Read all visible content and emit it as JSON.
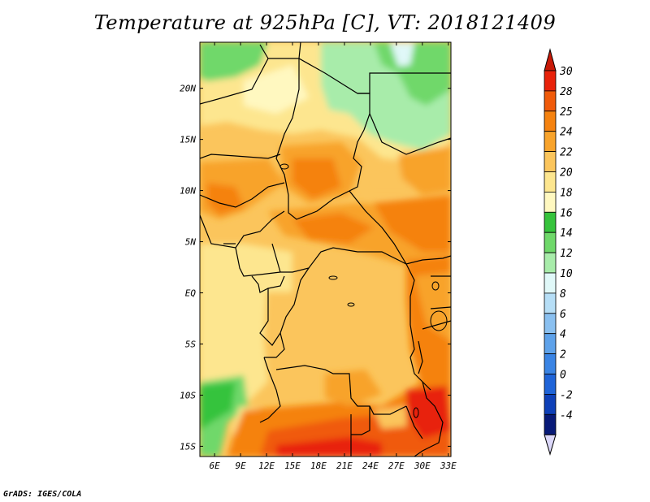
{
  "title": "Temperature at 925hPa [C], VT: 2018121409",
  "footer": "GrADS: IGES/COLA",
  "map": {
    "variable": "Temperature",
    "level": "925hPa",
    "units": "C",
    "valid_time": "2018121409",
    "lon_range": [
      4.3,
      33.3
    ],
    "lat_range": [
      -16,
      24.5
    ],
    "lon_ticks": [
      {
        "value": 6,
        "label": "6E"
      },
      {
        "value": 9,
        "label": "9E"
      },
      {
        "value": 12,
        "label": "12E"
      },
      {
        "value": 15,
        "label": "15E"
      },
      {
        "value": 18,
        "label": "18E"
      },
      {
        "value": 21,
        "label": "21E"
      },
      {
        "value": 24,
        "label": "24E"
      },
      {
        "value": 27,
        "label": "27E"
      },
      {
        "value": 30,
        "label": "30E"
      },
      {
        "value": 33,
        "label": "33E"
      }
    ],
    "lat_ticks": [
      {
        "value": 20,
        "label": "20N"
      },
      {
        "value": 15,
        "label": "15N"
      },
      {
        "value": 10,
        "label": "10N"
      },
      {
        "value": 5,
        "label": "5N"
      },
      {
        "value": 0,
        "label": "EQ"
      },
      {
        "value": -5,
        "label": "5S"
      },
      {
        "value": -10,
        "label": "10S"
      },
      {
        "value": -15,
        "label": "15S"
      }
    ]
  },
  "colorbar": {
    "labels": [
      "30",
      "28",
      "25",
      "24",
      "22",
      "20",
      "18",
      "16",
      "14",
      "12",
      "10",
      "8",
      "6",
      "4",
      "2",
      "0",
      "-2",
      "-4"
    ],
    "colors": [
      "#e8220a",
      "#f05a0a",
      "#f5820f",
      "#f8a32b",
      "#fbc55c",
      "#fde68f",
      "#fff8c0",
      "#36c33c",
      "#6fd86a",
      "#a8ecaa",
      "#e0f8f8",
      "#b6def6",
      "#8ac0f0",
      "#5ea2ea",
      "#3a84e4",
      "#1f64d8",
      "#0e40b8",
      "#081a78"
    ],
    "top_arrow_color": "#c81a08",
    "bottom_arrow_color": "#dcd8fa"
  }
}
